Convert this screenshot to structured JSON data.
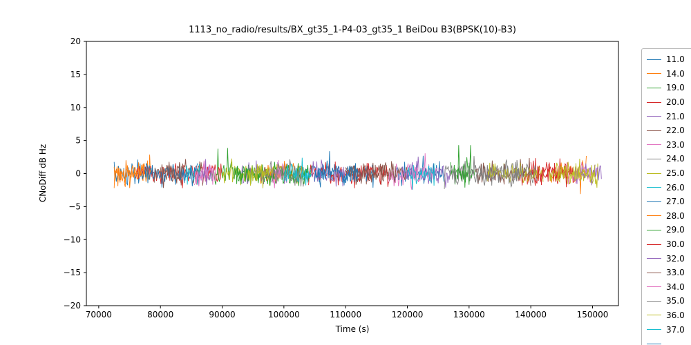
{
  "chart_data": {
    "type": "line",
    "title": "1113_no_radio/results/BX_gt35_1-P4-03_gt35_1 BeiDou B3(BPSK(10)-B3)",
    "xlabel": "Time (s)",
    "ylabel": "CNoDiff dB Hz",
    "xlim": [
      68000,
      154200
    ],
    "ylim": [
      -20,
      20
    ],
    "xticks": [
      70000,
      80000,
      90000,
      100000,
      110000,
      120000,
      130000,
      140000,
      150000
    ],
    "yticks": [
      20,
      15,
      10,
      5,
      0,
      -5,
      -10,
      -15,
      -20
    ],
    "grid": false,
    "legend_position": "right-outside",
    "noise_model": {
      "mean": 0,
      "std": 0.85,
      "spike_prob": 0.008,
      "spike_scale": 2.8,
      "step_s": 120,
      "clamp": 4.3
    },
    "palette": [
      "#1f77b4",
      "#ff7f0e",
      "#2ca02c",
      "#d62728",
      "#9467bd",
      "#8c564b",
      "#e377c2",
      "#7f7f7f",
      "#bcbd22",
      "#17becf"
    ],
    "series": [
      {
        "label": "11.0",
        "color_index": 0,
        "segments": [
          [
            72500,
            79000
          ],
          [
            118000,
            126000
          ]
        ]
      },
      {
        "label": "14.0",
        "color_index": 1,
        "segments": [
          [
            72500,
            78500
          ],
          [
            143000,
            149000
          ]
        ]
      },
      {
        "label": "19.0",
        "color_index": 2,
        "segments": [
          [
            88000,
            104000
          ],
          [
            127000,
            131000
          ]
        ]
      },
      {
        "label": "20.0",
        "color_index": 3,
        "segments": [
          [
            76000,
            90000
          ],
          [
            138000,
            146000
          ]
        ]
      },
      {
        "label": "21.0",
        "color_index": 4,
        "segments": [
          [
            93000,
            101000
          ],
          [
            119000,
            127000
          ]
        ]
      },
      {
        "label": "22.0",
        "color_index": 5,
        "segments": [
          [
            80000,
            88000
          ],
          [
            110000,
            118000
          ],
          [
            131000,
            140000
          ]
        ]
      },
      {
        "label": "23.0",
        "color_index": 6,
        "segments": [
          [
            85000,
            89000
          ],
          [
            117000,
            125000
          ],
          [
            146000,
            151000
          ]
        ]
      },
      {
        "label": "24.0",
        "color_index": 7,
        "segments": [
          [
            100000,
            104000
          ],
          [
            126000,
            138000
          ]
        ]
      },
      {
        "label": "25.0",
        "color_index": 8,
        "segments": [
          [
            90000,
            99000
          ],
          [
            133000,
            142000
          ],
          [
            144000,
            151000
          ]
        ]
      },
      {
        "label": "26.0",
        "color_index": 9,
        "segments": [
          [
            84000,
            86500
          ],
          [
            102000,
            104500
          ]
        ]
      },
      {
        "label": "27.0",
        "color_index": 0,
        "segments": [
          [
            77000,
            86000
          ],
          [
            104000,
            115000
          ]
        ]
      },
      {
        "label": "28.0",
        "color_index": 1,
        "segments": [
          [
            72500,
            77500
          ],
          [
            96000,
            103000
          ]
        ]
      },
      {
        "label": "29.0",
        "color_index": 2,
        "segments": [
          [
            92000,
            104500
          ],
          [
            128000,
            130000
          ]
        ]
      },
      {
        "label": "30.0",
        "color_index": 3,
        "segments": [
          [
            104000,
            117000
          ],
          [
            140000,
            147000
          ]
        ]
      },
      {
        "label": "32.0",
        "color_index": 4,
        "segments": [
          [
            86000,
            88500
          ],
          [
            104500,
            110000
          ],
          [
            147000,
            151500
          ]
        ]
      },
      {
        "label": "33.0",
        "color_index": 5,
        "segments": [
          [
            79000,
            83500
          ],
          [
            110000,
            120000
          ]
        ]
      },
      {
        "label": "34.0",
        "color_index": 6,
        "segments": [
          [
            85500,
            88500
          ],
          [
            98000,
            100500
          ]
        ]
      },
      {
        "label": "35.0",
        "color_index": 7,
        "segments": [
          [
            96000,
            103000
          ],
          [
            130000,
            141000
          ]
        ]
      },
      {
        "label": "36.0",
        "color_index": 8,
        "segments": [
          [
            94000,
            98500
          ],
          [
            143000,
            150500
          ]
        ]
      },
      {
        "label": "37.0",
        "color_index": 9,
        "segments": [
          [
            100000,
            104500
          ],
          [
            120000,
            124500
          ]
        ]
      },
      {
        "label": "",
        "color_index": 0,
        "segments": [
          [
            105000,
            112000
          ]
        ]
      }
    ]
  }
}
